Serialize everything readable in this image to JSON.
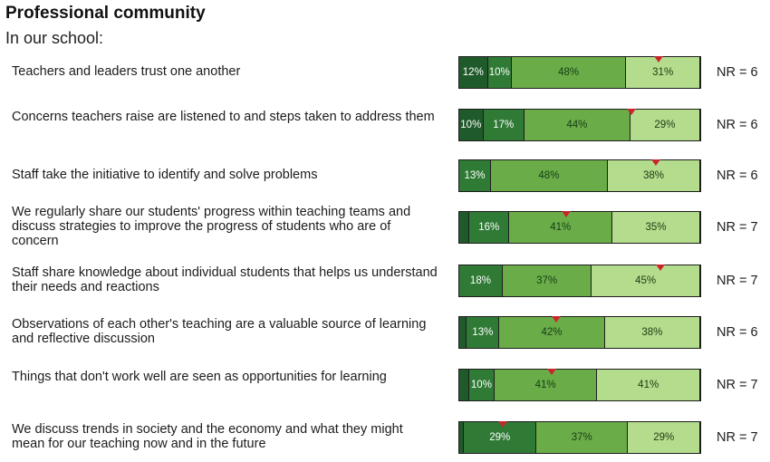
{
  "header": {
    "title": "Professional community",
    "subtitle": "In our school:"
  },
  "colors": {
    "strongly_disagree": "#1f5a2a",
    "disagree": "#2f7a35",
    "agree": "#6aad48",
    "strongly_agree": "#b3dc8c",
    "marker": "#c8262e"
  },
  "chart_data": {
    "type": "bar",
    "orientation": "horizontal",
    "stacked": true,
    "title": "Professional community",
    "subtitle": "In our school:",
    "xlim": [
      0,
      100
    ],
    "categories": [
      "Teachers and leaders trust one another",
      "Concerns teachers raise are listened to and steps taken to address them",
      "Staff take the initiative to identify and solve problems",
      "We regularly share our students' progress within teaching teams and discuss strategies to improve the progress of students who are of concern",
      "Staff share knowledge about individual students that helps us understand their needs and reactions",
      "Observations of each other's teaching are a valuable source of learning and reflective discussion",
      "Things that don't work well are seen as opportunities for learning",
      "We discuss trends in society and the economy and what they might mean for our teaching now and in the future"
    ],
    "series": [
      {
        "values": [
          0,
          0,
          0,
          4,
          0,
          3,
          4,
          2
        ]
      },
      {
        "values": [
          12,
          10,
          0,
          16,
          0,
          13,
          10,
          29
        ]
      },
      {
        "values": [
          10,
          17,
          13,
          41,
          18,
          42,
          41,
          37
        ]
      },
      {
        "values": [
          48,
          44,
          48,
          35,
          37,
          38,
          41,
          29
        ]
      },
      {
        "values": [
          31,
          29,
          38,
          0,
          45,
          0,
          0,
          0
        ]
      }
    ],
    "segments": [
      [
        12,
        10,
        48,
        31
      ],
      [
        10,
        17,
        44,
        29
      ],
      [
        13,
        48,
        38
      ],
      [
        4,
        16,
        41,
        35
      ],
      [
        18,
        37,
        45
      ],
      [
        3,
        13,
        42,
        38
      ],
      [
        4,
        10,
        41,
        41
      ],
      [
        2,
        29,
        37,
        29
      ]
    ],
    "segment_labels": [
      [
        "12%",
        "10%",
        "48%",
        "31%"
      ],
      [
        "10%",
        "17%",
        "44%",
        "29%"
      ],
      [
        "13%",
        "48%",
        "38%"
      ],
      [
        "",
        "16%",
        "41%",
        "35%"
      ],
      [
        "18%",
        "37%",
        "45%"
      ],
      [
        "",
        "13%",
        "42%",
        "38%"
      ],
      [
        "",
        "10%",
        "41%",
        "41%"
      ],
      [
        "",
        "29%",
        "37%",
        "29%"
      ]
    ],
    "segment_colors": [
      [
        "strongly_disagree",
        "disagree",
        "agree",
        "strongly_agree"
      ],
      [
        "strongly_disagree",
        "disagree",
        "agree",
        "strongly_agree"
      ],
      [
        "disagree",
        "agree",
        "strongly_agree"
      ],
      [
        "strongly_disagree",
        "disagree",
        "agree",
        "strongly_agree"
      ],
      [
        "disagree",
        "agree",
        "strongly_agree"
      ],
      [
        "strongly_disagree",
        "disagree",
        "agree",
        "strongly_agree"
      ],
      [
        "strongly_disagree",
        "disagree",
        "agree",
        "strongly_agree"
      ],
      [
        "strongly_disagree",
        "disagree",
        "agree",
        "strongly_agree"
      ]
    ],
    "marker_values": [
      82,
      71,
      81,
      44,
      83,
      40,
      38,
      18
    ],
    "nr_labels": [
      "NR = 6",
      "NR = 6",
      "NR = 6",
      "NR = 7",
      "NR = 7",
      "NR = 6",
      "NR = 7",
      "NR = 7"
    ]
  }
}
